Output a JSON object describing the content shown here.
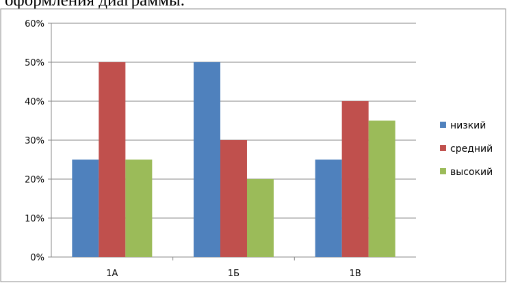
{
  "caption_fragment": "оформления диаграммы.",
  "chart_data": {
    "type": "bar",
    "categories": [
      "1А",
      "1Б",
      "1В"
    ],
    "series": [
      {
        "name": "низкий",
        "values": [
          25,
          50,
          25
        ],
        "color": "#4f81bd"
      },
      {
        "name": "средний",
        "values": [
          50,
          30,
          40
        ],
        "color": "#c0504d"
      },
      {
        "name": "высокий",
        "values": [
          25,
          20,
          35
        ],
        "color": "#9bbb59"
      }
    ],
    "yticks": [
      "0%",
      "10%",
      "20%",
      "30%",
      "40%",
      "50%",
      "60%"
    ],
    "ylim": [
      0,
      60
    ],
    "grid": true,
    "legend": "right",
    "title": "",
    "xlabel": "",
    "ylabel": ""
  }
}
